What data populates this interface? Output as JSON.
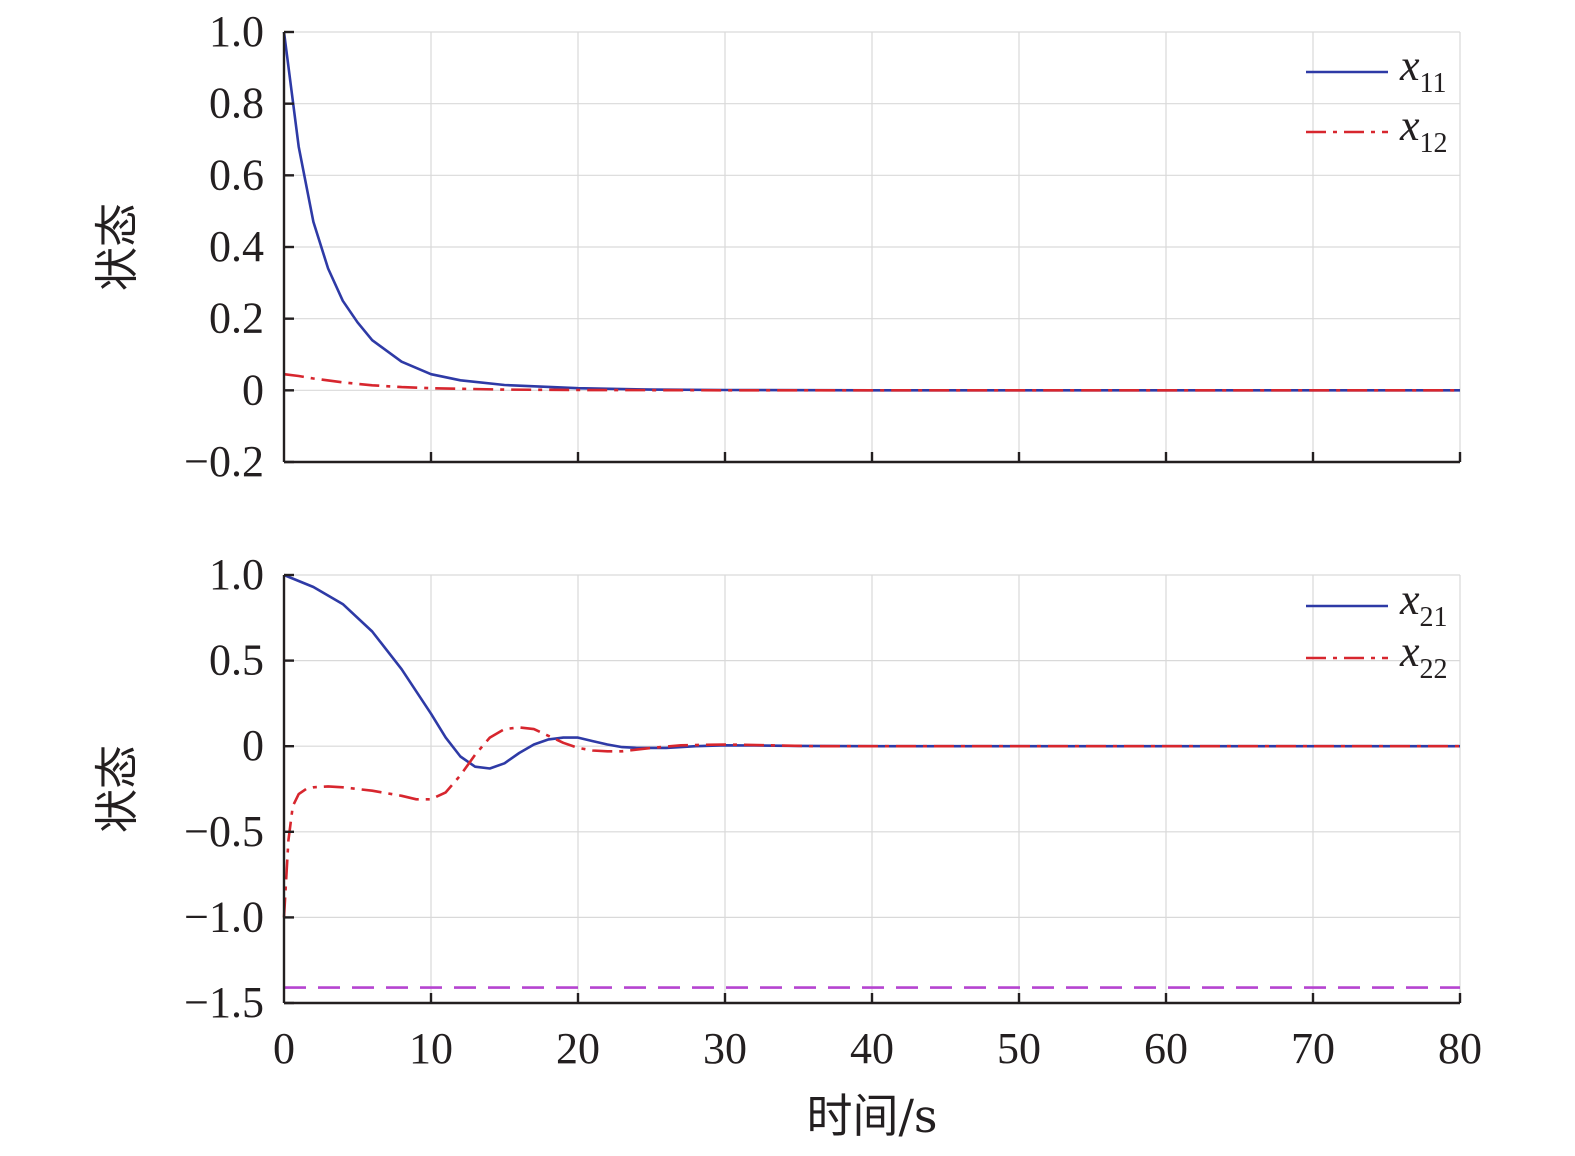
{
  "chart_data": [
    {
      "type": "line",
      "ylabel": "状态",
      "xlim": [
        0,
        80
      ],
      "ylim": [
        -0.2,
        1.0
      ],
      "yticks": [
        "1.0",
        "0.8",
        "0.6",
        "0.4",
        "0.2",
        "0",
        "−0.2"
      ],
      "yticks_values": [
        1.0,
        0.8,
        0.6,
        0.4,
        0.2,
        0,
        -0.2
      ],
      "grid": true,
      "legend_position": "top-right",
      "series": [
        {
          "name": "x",
          "subscript": "11",
          "color": "#2e3aa6",
          "style": "solid",
          "x": [
            0,
            1,
            2,
            3,
            4,
            5,
            6,
            8,
            10,
            12,
            15,
            20,
            25,
            30,
            40,
            50,
            60,
            70,
            80
          ],
          "y": [
            1.0,
            0.68,
            0.47,
            0.34,
            0.25,
            0.19,
            0.14,
            0.08,
            0.045,
            0.028,
            0.015,
            0.006,
            0.002,
            0.001,
            0,
            0,
            0,
            0,
            0
          ]
        },
        {
          "name": "x",
          "subscript": "12",
          "color": "#d7262e",
          "style": "dash-dot",
          "x": [
            0,
            1,
            2,
            4,
            6,
            8,
            10,
            15,
            20,
            30,
            40,
            50,
            60,
            70,
            80
          ],
          "y": [
            0.045,
            0.04,
            0.033,
            0.022,
            0.014,
            0.009,
            0.006,
            0.002,
            0.001,
            0,
            0,
            0,
            0,
            0,
            0
          ]
        }
      ]
    },
    {
      "type": "line",
      "ylabel": "状态",
      "xlabel": "时间/s",
      "xlim": [
        0,
        80
      ],
      "ylim": [
        -1.5,
        1.0
      ],
      "xticks": [
        "0",
        "10",
        "20",
        "30",
        "40",
        "50",
        "60",
        "70",
        "80"
      ],
      "xticks_values": [
        0,
        10,
        20,
        30,
        40,
        50,
        60,
        70,
        80
      ],
      "yticks": [
        "1.0",
        "0.5",
        "0",
        "−0.5",
        "−1.0",
        "−1.5"
      ],
      "yticks_values": [
        1.0,
        0.5,
        0,
        -0.5,
        -1.0,
        -1.5
      ],
      "grid": true,
      "legend_position": "top-right",
      "reference_line": {
        "y": -1.41,
        "color": "#b544d0",
        "style": "dashed"
      },
      "series": [
        {
          "name": "x",
          "subscript": "21",
          "color": "#2e3aa6",
          "style": "solid",
          "x": [
            0,
            2,
            4,
            6,
            8,
            10,
            11,
            12,
            13,
            14,
            15,
            16,
            17,
            18,
            19,
            20,
            21,
            22,
            23,
            24,
            26,
            28,
            30,
            32,
            35,
            40,
            50,
            60,
            70,
            80
          ],
          "y": [
            1.0,
            0.93,
            0.83,
            0.67,
            0.45,
            0.19,
            0.05,
            -0.06,
            -0.12,
            -0.13,
            -0.1,
            -0.04,
            0.01,
            0.04,
            0.05,
            0.05,
            0.03,
            0.01,
            -0.005,
            -0.01,
            -0.01,
            0,
            0.005,
            0.004,
            0.002,
            0,
            0,
            0,
            0,
            0
          ]
        },
        {
          "name": "x",
          "subscript": "22",
          "color": "#d7262e",
          "style": "dash-dot",
          "x": [
            0,
            0.3,
            0.6,
            1,
            1.5,
            2,
            3,
            4,
            6,
            8,
            9,
            10,
            11,
            12,
            13,
            14,
            15,
            16,
            17,
            18,
            19,
            20,
            21,
            22,
            23,
            24,
            25,
            27,
            30,
            33,
            36,
            40,
            50,
            60,
            70,
            80
          ],
          "y": [
            -1.0,
            -0.55,
            -0.35,
            -0.28,
            -0.25,
            -0.24,
            -0.235,
            -0.24,
            -0.26,
            -0.29,
            -0.31,
            -0.31,
            -0.27,
            -0.17,
            -0.05,
            0.05,
            0.1,
            0.11,
            0.1,
            0.06,
            0.02,
            -0.01,
            -0.025,
            -0.03,
            -0.03,
            -0.02,
            -0.01,
            0.005,
            0.01,
            0.005,
            0,
            0,
            0,
            0,
            0,
            0
          ]
        }
      ]
    }
  ]
}
